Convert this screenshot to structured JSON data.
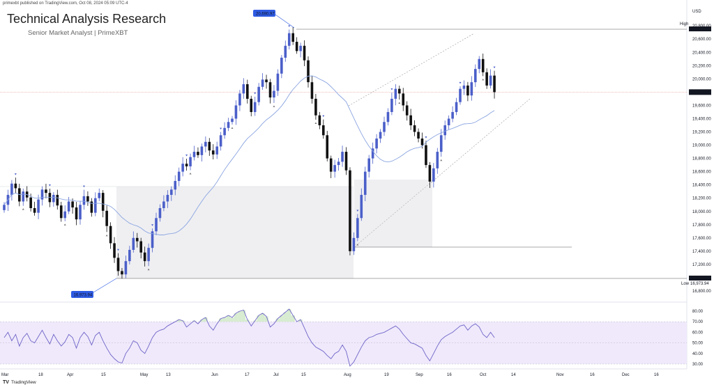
{
  "header": {
    "published": "primexbt published on TradingView.com, Oct 08, 2024 05:09 UTC-4",
    "title": "Technical Analysis Research",
    "subtitle": "Senior Market Analyst | PrimeXBT"
  },
  "footer": {
    "brand": "TradingView",
    "brand_mark_icon": "tradingview-logo-icon"
  },
  "colors": {
    "up": "#4b5fc9",
    "down": "#111111",
    "ma": "#8aa4e0",
    "rsi_line": "#6f63c8",
    "rsi_band": "#efe9fb",
    "rsi_ob": "#d7ecd0",
    "badge": "#2e5be3",
    "zone": "#efeff2"
  },
  "chart_data": [
    {
      "type": "candlestick",
      "title": "",
      "currency": "USD",
      "price_axis": {
        "ticks": [
          "20,800.00",
          "20,600.00",
          "20,400.00",
          "20,200.00",
          "20,000.00",
          "19,800.00",
          "19,600.00",
          "19,400.00",
          "19,200.00",
          "19,000.00",
          "18,800.00",
          "18,600.00",
          "18,400.00",
          "18,200.00",
          "18,000.00",
          "17,800.00",
          "17,600.00",
          "17,400.00",
          "17,200.00",
          "17,000.00",
          "16,800.00"
        ],
        "ylim": [
          16800,
          20800
        ]
      },
      "time_axis": {
        "ticks": [
          "Mar",
          "18",
          "Apr",
          "15",
          "May",
          "13",
          "Jun",
          "17",
          "Jul",
          "15",
          "Aug",
          "19",
          "Sep",
          "16",
          "Oct",
          "14",
          "Nov",
          "16",
          "Dec",
          "16"
        ]
      },
      "labels": {
        "high_value": "20,690.97",
        "low_value": "16,973.94",
        "high_tag": "High",
        "low_tag": "Low",
        "high_axis": "20,690.97",
        "low_axis": "16,973.94",
        "last_axis": "19,800.74",
        "high_axis_dup": "20,800.00",
        "low_axis_dup": "16,972.84"
      },
      "last_price": 19800.74,
      "high": 20690.97,
      "low": 16973.94,
      "ma_period_hint": "moving average",
      "closes": [
        18100,
        18250,
        18420,
        18350,
        18150,
        18300,
        18210,
        18050,
        17980,
        18180,
        18330,
        18280,
        18140,
        18250,
        18090,
        17900,
        18000,
        18150,
        18060,
        17880,
        18100,
        18230,
        18150,
        17980,
        18200,
        18280,
        18010,
        17780,
        17520,
        17300,
        17100,
        17050,
        17250,
        17420,
        17600,
        17550,
        17380,
        17250,
        17450,
        17700,
        17900,
        18050,
        18150,
        18250,
        18330,
        18460,
        18600,
        18720,
        18680,
        18820,
        18900,
        18850,
        18980,
        19050,
        18920,
        18860,
        18980,
        19150,
        19260,
        19350,
        19400,
        19600,
        19780,
        19920,
        19700,
        19500,
        19650,
        19880,
        19990,
        19950,
        19720,
        19820,
        20080,
        20320,
        20500,
        20690,
        20560,
        20420,
        20500,
        20280,
        19950,
        19700,
        19450,
        19300,
        19150,
        18800,
        18600,
        18700,
        18750,
        18900,
        18620,
        17400,
        17600,
        17900,
        18250,
        18600,
        18800,
        18950,
        19100,
        19200,
        19350,
        19500,
        19700,
        19850,
        19780,
        19600,
        19450,
        19300,
        19200,
        19100,
        19000,
        18700,
        18450,
        18650,
        18900,
        19150,
        19300,
        19400,
        19500,
        19650,
        19850,
        19900,
        19750,
        19950,
        20150,
        20300,
        20100,
        19900,
        20050,
        19800
      ],
      "rsi": {
        "ticks": [
          "80.00",
          "70.00",
          "60.00",
          "50.00",
          "40.00",
          "30.00"
        ],
        "ylim": [
          25,
          85
        ],
        "overbought": 70,
        "oversold": 30,
        "values": [
          55,
          60,
          52,
          58,
          47,
          55,
          59,
          52,
          50,
          56,
          62,
          55,
          49,
          58,
          52,
          47,
          51,
          58,
          55,
          45,
          55,
          60,
          56,
          48,
          57,
          60,
          52,
          45,
          39,
          35,
          32,
          31,
          40,
          45,
          52,
          50,
          43,
          40,
          47,
          55,
          60,
          62,
          63,
          66,
          68,
          70,
          72,
          71,
          65,
          68,
          71,
          68,
          72,
          74,
          66,
          62,
          68,
          73,
          74,
          76,
          74,
          78,
          80,
          81,
          72,
          66,
          71,
          76,
          78,
          75,
          65,
          68,
          73,
          76,
          79,
          82,
          76,
          70,
          72,
          64,
          56,
          50,
          46,
          44,
          42,
          38,
          35,
          40,
          42,
          48,
          42,
          28,
          32,
          39,
          46,
          52,
          55,
          56,
          58,
          59,
          60,
          62,
          64,
          66,
          63,
          58,
          54,
          50,
          49,
          47,
          45,
          38,
          33,
          40,
          47,
          53,
          56,
          58,
          60,
          63,
          66,
          67,
          62,
          66,
          68,
          65,
          58,
          55,
          60,
          55
        ]
      }
    }
  ]
}
